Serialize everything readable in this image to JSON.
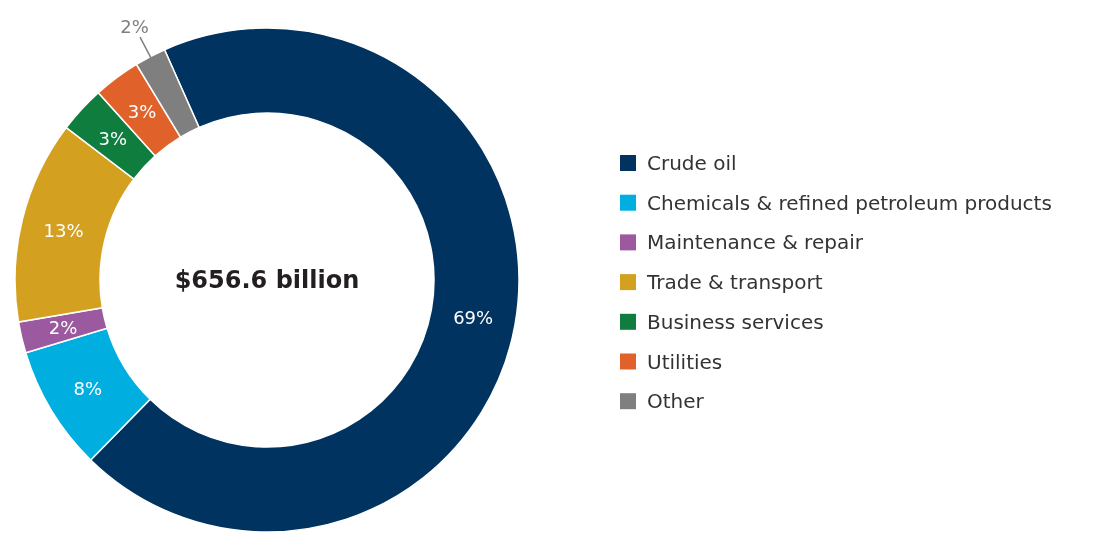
{
  "chart_data": {
    "type": "donut",
    "categories": [
      "Crude oil",
      "Chemicals & refined petroleum products",
      "Maintenance & repair",
      "Trade & transport",
      "Business services",
      "Utilities",
      "Other"
    ],
    "values": [
      69,
      8,
      2,
      13,
      3,
      3,
      2
    ],
    "colors": [
      "#00335f",
      "#00aedf",
      "#9b5aa0",
      "#d4a020",
      "#0e7d3e",
      "#e0622a",
      "#7f7f7f"
    ],
    "value_labels": [
      "69%",
      "8%",
      "2%",
      "13%",
      "3%",
      "3%",
      "2%"
    ],
    "annotations": [
      "$656.6 billion"
    ],
    "legend": "right"
  }
}
